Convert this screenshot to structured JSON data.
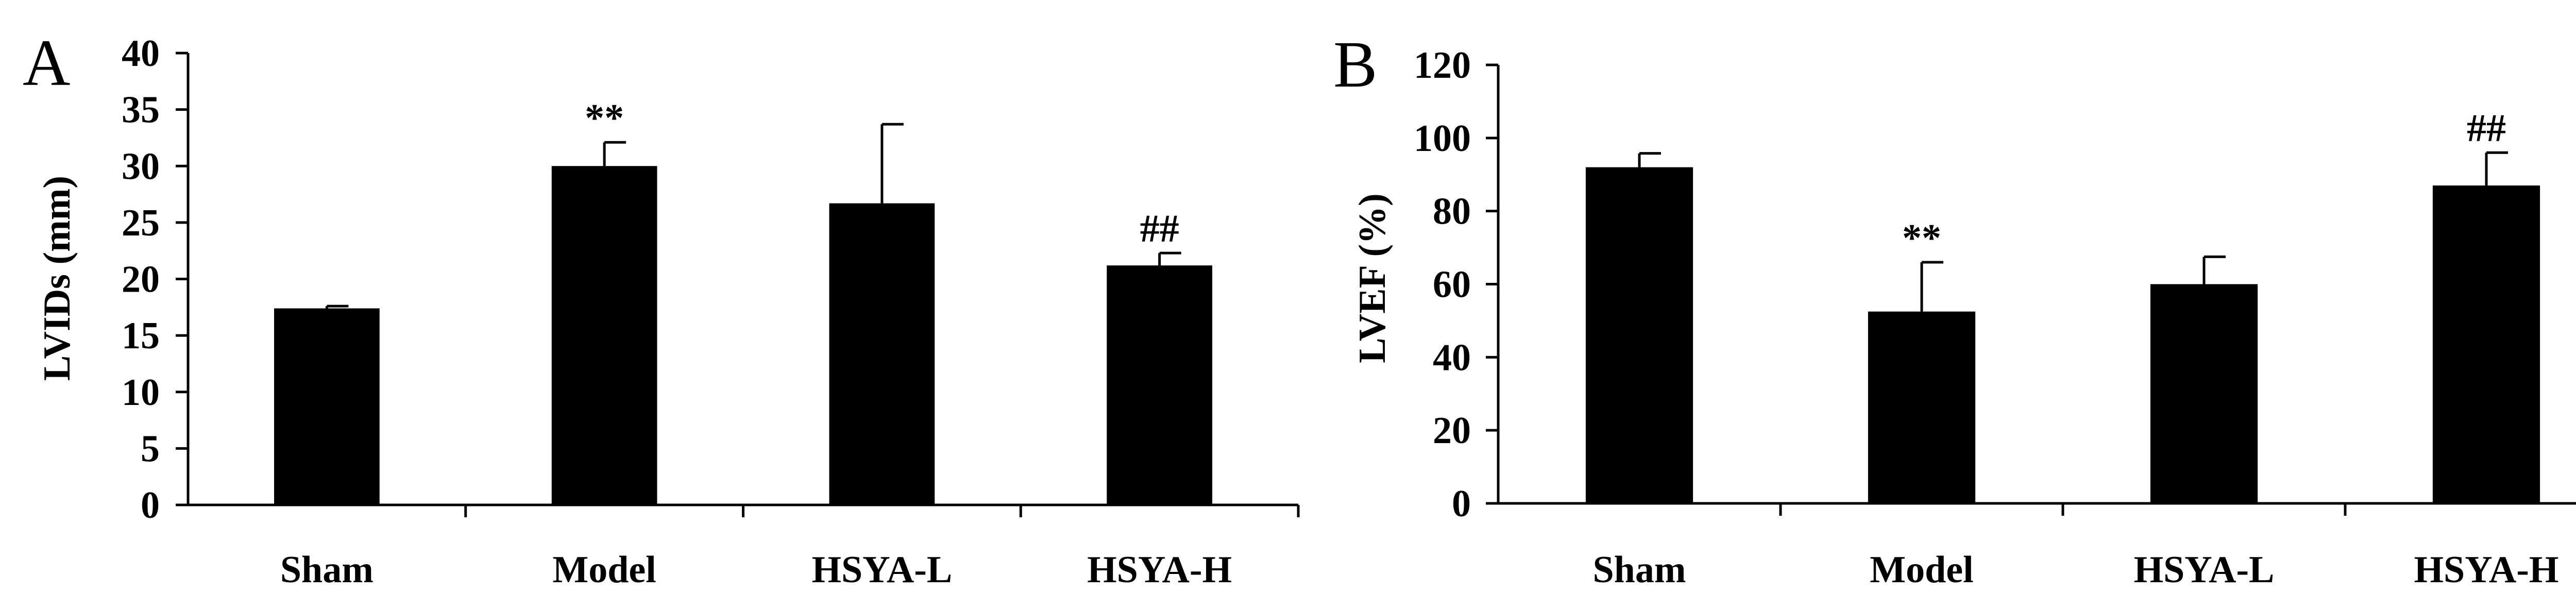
{
  "chart_data": [
    {
      "panel_label": "A",
      "type": "bar",
      "ylabel": "LVIDs (mm)",
      "xlabel": "",
      "ylim": [
        0,
        40
      ],
      "yticks": [
        0,
        5,
        10,
        15,
        20,
        25,
        30,
        35,
        40
      ],
      "categories": [
        "Sham",
        "Model",
        "HSYA-L",
        "HSYA-H"
      ],
      "values": [
        17.4,
        30.0,
        26.7,
        21.2
      ],
      "errors": [
        0.2,
        2.1,
        7.0,
        1.1
      ],
      "annotations": [
        "",
        "**",
        "",
        "##"
      ],
      "bar_color": "#000000",
      "grid": false
    },
    {
      "panel_label": "B",
      "type": "bar",
      "ylabel": "LVEF (%)",
      "xlabel": "",
      "ylim": [
        0,
        120
      ],
      "yticks": [
        0,
        20,
        40,
        60,
        80,
        100,
        120
      ],
      "categories": [
        "Sham",
        "Model",
        "HSYA-L",
        "HSYA-H"
      ],
      "values": [
        92.0,
        52.5,
        60.0,
        87.0
      ],
      "errors": [
        3.8,
        13.5,
        7.5,
        9.0
      ],
      "annotations": [
        "",
        "**",
        "",
        "##"
      ],
      "bar_color": "#000000",
      "grid": false
    }
  ]
}
